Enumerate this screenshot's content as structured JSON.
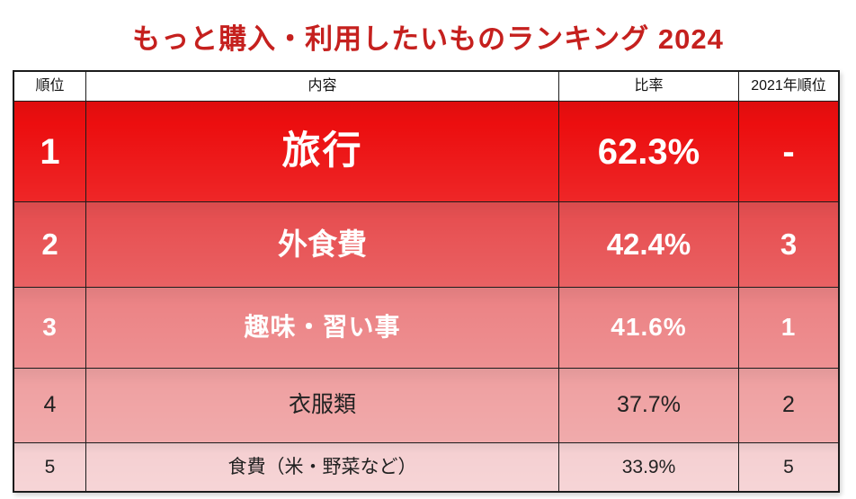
{
  "title": "もっと購入・利用したいものランキング 2024",
  "table": {
    "headers": [
      "順位",
      "内容",
      "比率",
      "2021年順位"
    ],
    "rows": [
      {
        "rank": "1",
        "item": "旅行",
        "ratio": "62.3%",
        "rank2021": "-"
      },
      {
        "rank": "2",
        "item": "外食費",
        "ratio": "42.4%",
        "rank2021": "3"
      },
      {
        "rank": "3",
        "item": "趣味・習い事",
        "ratio": "41.6%",
        "rank2021": "1"
      },
      {
        "rank": "4",
        "item": "衣服類",
        "ratio": "37.7%",
        "rank2021": "2"
      },
      {
        "rank": "5",
        "item": "食費（米・野菜など）",
        "ratio": "33.9%",
        "rank2021": "5"
      }
    ]
  },
  "colors": {
    "title_red": "#c5201e",
    "border_black": "#1b1b1b",
    "header_background": "#ffffff",
    "row_backgrounds": [
      "#ec0e0f",
      "#e75052",
      "#ec8486",
      "#efa1a2",
      "#f5d0d2"
    ],
    "row_text_colors": [
      "#ffffff",
      "#ffffff",
      "#ffffff",
      "#222222",
      "#222222"
    ]
  }
}
